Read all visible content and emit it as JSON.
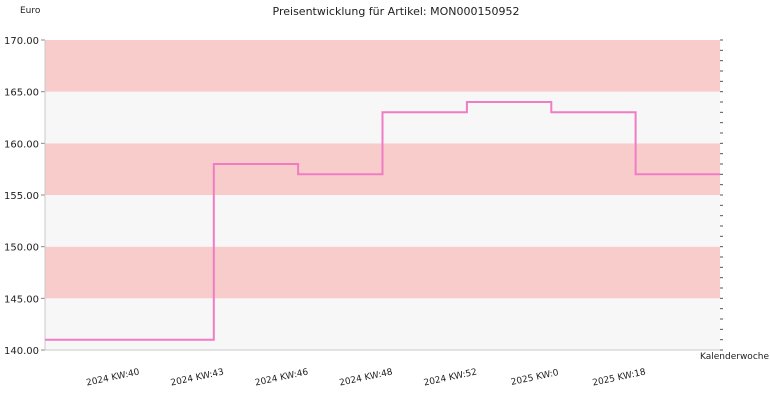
{
  "chart_data": {
    "type": "line",
    "step": true,
    "title": "Preisentwicklung für Artikel: MON000150952",
    "ylabel": "Euro",
    "xlabel": "Kalenderwoche",
    "ylim": [
      140,
      170
    ],
    "yticks": [
      "140.00",
      "145.00",
      "150.00",
      "155.00",
      "160.00",
      "165.00",
      "170.00"
    ],
    "xtick_labels": [
      "2024 KW:40",
      "2024 KW:43",
      "2024 KW:46",
      "2024 KW:48",
      "2024 KW:52",
      "2025 KW:0",
      "2025 KW:18"
    ],
    "band_colors": [
      "#f7f7f7",
      "#f9cccc"
    ],
    "line_color": "#f07cc6",
    "series": [
      {
        "values": [
          141,
          141,
          158,
          157,
          163,
          164,
          163,
          157
        ]
      }
    ]
  }
}
